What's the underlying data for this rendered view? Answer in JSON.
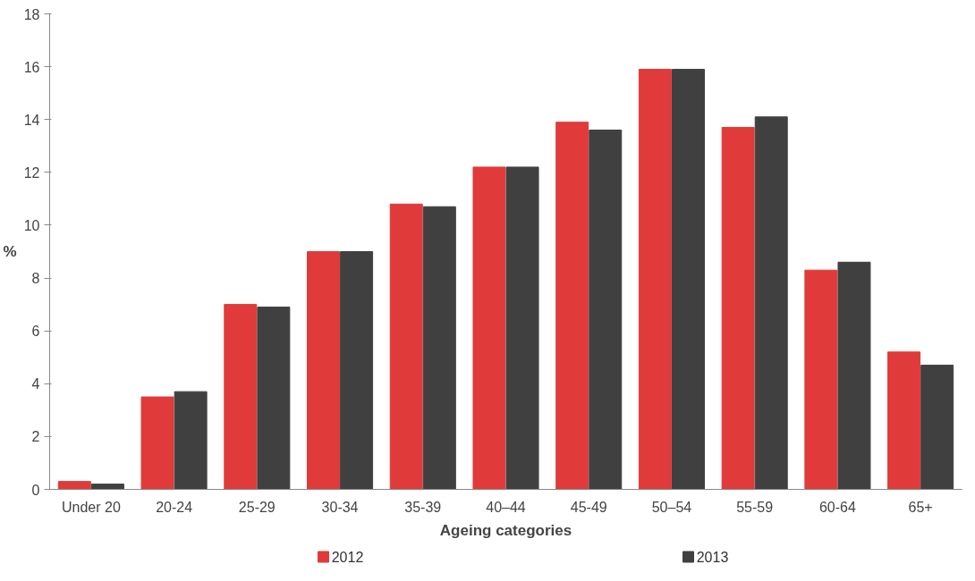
{
  "chart_data": {
    "type": "bar",
    "xlabel": "Ageing categories",
    "ylabel": "%",
    "categories": [
      "Under 20",
      "20-24",
      "25-29",
      "30-34",
      "35-39",
      "40–44",
      "45-49",
      "50–54",
      "55-59",
      "60-64",
      "65+"
    ],
    "series": [
      {
        "name": "2012",
        "color": "#e03a3a",
        "values": [
          0.3,
          3.5,
          7.0,
          9.0,
          10.8,
          12.2,
          13.9,
          15.9,
          13.7,
          8.3,
          5.2
        ]
      },
      {
        "name": "2013",
        "color": "#404040",
        "values": [
          0.2,
          3.7,
          6.9,
          9.0,
          10.7,
          12.2,
          13.6,
          15.9,
          14.1,
          8.6,
          4.7
        ]
      }
    ],
    "ylim": [
      0,
      18
    ],
    "yticks": [
      0,
      2,
      4,
      6,
      8,
      10,
      12,
      14,
      16,
      18
    ],
    "grid": false,
    "legend": "bottom"
  }
}
